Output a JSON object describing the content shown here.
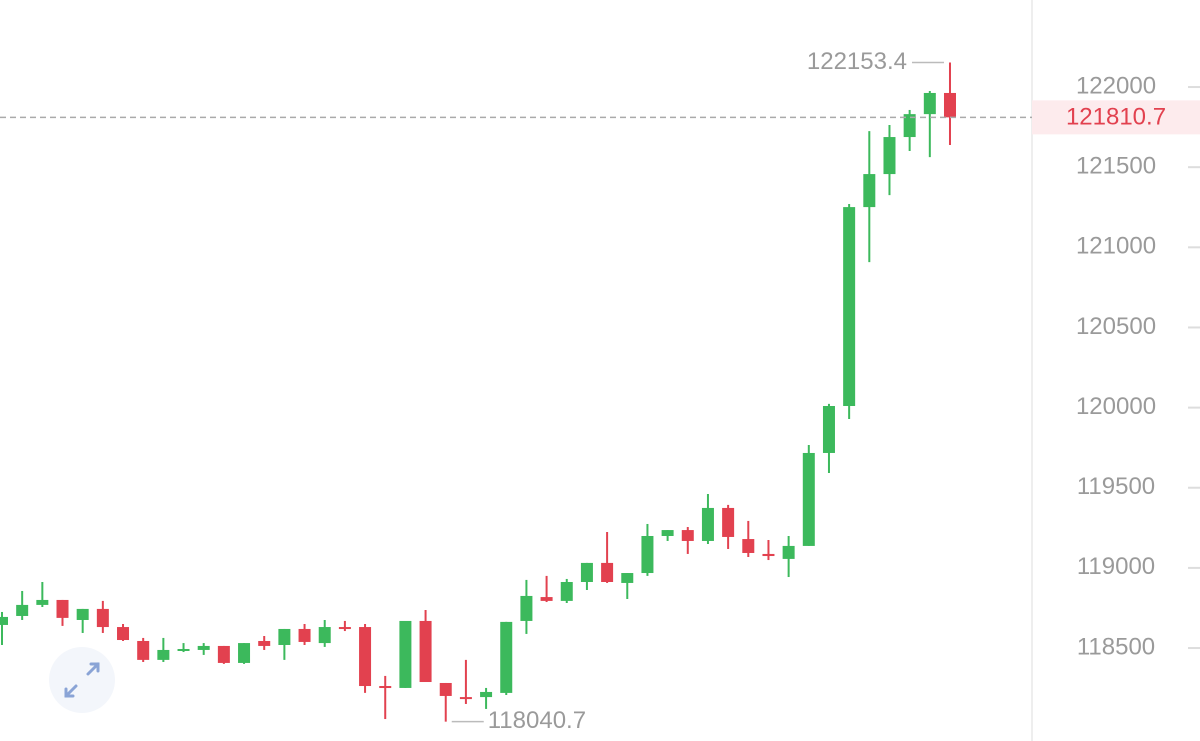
{
  "chart_data": {
    "type": "candlestick",
    "open": [
      118644,
      118700,
      118769,
      118800,
      118675,
      118744,
      118631,
      118544,
      118426,
      118482,
      118488,
      118513,
      118407,
      118544,
      118519,
      118619,
      118531,
      118631,
      118631,
      118263,
      118251,
      118669,
      118282,
      118194,
      118194,
      118220,
      118669,
      118818,
      118794,
      118912,
      119031,
      118906,
      118968,
      119199,
      119236,
      119168,
      119374,
      119180,
      119087,
      119056,
      119137,
      119717,
      120010,
      121251,
      121457,
      121688,
      121831,
      121963
    ],
    "high": [
      118725,
      118856,
      118912,
      118800,
      118744,
      118794,
      118650,
      118563,
      118563,
      118531,
      118531,
      118513,
      118531,
      118575,
      118619,
      118650,
      118675,
      118669,
      118650,
      118326,
      118669,
      118737,
      118282,
      118426,
      118251,
      118663,
      118925,
      118950,
      118931,
      119031,
      119224,
      118968,
      119274,
      119236,
      119255,
      119461,
      119393,
      119293,
      119174,
      119199,
      119767,
      120023,
      121270,
      121725,
      121763,
      121857,
      121975,
      122153.4
    ],
    "low": [
      118519,
      118675,
      118756,
      118638,
      118594,
      118594,
      118544,
      118413,
      118413,
      118475,
      118457,
      118401,
      118401,
      118488,
      118426,
      118519,
      118507,
      118606,
      118220,
      118057,
      118251,
      118288,
      118040.7,
      118151,
      118120,
      118207,
      118588,
      118787,
      118781,
      118862,
      118906,
      118806,
      118950,
      119168,
      119087,
      119149,
      119118,
      119068,
      119049,
      118943,
      119137,
      119592,
      119929,
      120908,
      121326,
      121601,
      121563,
      121638
    ],
    "close": [
      118694,
      118769,
      118800,
      118688,
      118744,
      118631,
      118550,
      118426,
      118488,
      118494,
      118513,
      118407,
      118531,
      118513,
      118619,
      118538,
      118631,
      118625,
      118263,
      118251,
      118669,
      118288,
      118201,
      118182,
      118226,
      118663,
      118825,
      118794,
      118912,
      119031,
      118912,
      118968,
      119199,
      119236,
      119168,
      119374,
      119193,
      119093,
      119074,
      119137,
      119717,
      120010,
      121251,
      121457,
      121688,
      121831,
      121963,
      121810.7
    ],
    "up_color": "#3cb95c",
    "down_color": "#e2414f",
    "ylim": [
      117920,
      122543
    ],
    "yticks": [
      118500,
      119000,
      119500,
      120000,
      120500,
      121000,
      121500,
      122000
    ]
  }
}
